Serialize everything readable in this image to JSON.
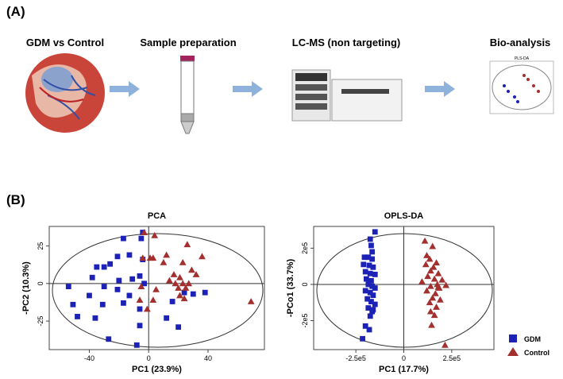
{
  "panel_a": {
    "label": "(A)",
    "steps": [
      "GDM vs Control",
      "Sample preparation",
      "LC-MS (non targeting)",
      "Bio-analysis"
    ],
    "mini_chart_title": "PLS-DA"
  },
  "panel_b": {
    "label": "(B)"
  },
  "chart_data": [
    {
      "type": "scatter",
      "title": "PCA",
      "x_label": "PC1 (23.9%)",
      "y_label": "-PC2 (10.3%)",
      "xlim": [
        -67,
        78
      ],
      "ylim": [
        -44,
        38
      ],
      "xticks": [
        -40,
        0,
        40
      ],
      "yticks": [
        -25,
        0,
        25
      ],
      "series": [
        {
          "name": "GDM",
          "color": "#1c22b5",
          "marker": "square",
          "x": [
            -17,
            -5,
            -13,
            -21,
            -35,
            -30,
            -26,
            -4,
            -38,
            -54,
            -51,
            -20,
            -11,
            -6,
            -30,
            -40,
            -21,
            -3,
            -13,
            -31,
            -17,
            -6,
            -48,
            -36,
            -6,
            16,
            24,
            12,
            20,
            30,
            38,
            -27,
            -8,
            -4
          ],
          "values": [
            30,
            30,
            19,
            18,
            11,
            11,
            13,
            16,
            4,
            -2,
            -14,
            2,
            3,
            5,
            -2,
            -8,
            -4,
            0,
            -8,
            -14,
            -13,
            -17,
            -22,
            -23,
            -28,
            -12,
            -6,
            -23,
            -29,
            -7,
            -6,
            -37,
            -41,
            34
          ]
        },
        {
          "name": "Control",
          "color": "#a3302f",
          "marker": "triangle",
          "x": [
            -3,
            4,
            26,
            -4,
            3,
            12,
            23,
            36,
            17,
            21,
            29,
            32,
            14,
            18,
            23,
            27,
            20,
            25,
            21,
            24,
            5,
            3,
            -6,
            -1,
            -5,
            1,
            69,
            10
          ],
          "values": [
            34,
            32,
            26,
            17,
            17,
            19,
            14,
            18,
            6,
            4,
            9,
            6,
            2,
            0,
            0,
            0,
            -3,
            -3,
            -8,
            -10,
            -4,
            -11,
            -11,
            -17,
            -2,
            17,
            -12,
            14
          ]
        }
      ]
    },
    {
      "type": "scatter",
      "title": "OPLS-DA",
      "x_label": "PC1 (17.7%)",
      "y_label": "-PCo1 (33.7%)",
      "xlim": [
        -470000,
        470000
      ],
      "ylim": [
        -360000,
        320000
      ],
      "xticks": [
        {
          "value": -250000,
          "label": "-2.5e5"
        },
        0,
        {
          "value": 250000,
          "label": "2.5e5"
        }
      ],
      "yticks": [
        {
          "value": -200000,
          "label": "-2e5"
        },
        0,
        {
          "value": 200000,
          "label": "2e5"
        }
      ],
      "series": [
        {
          "name": "GDM",
          "color": "#1c22b5",
          "marker": "square",
          "x": [
            -150000,
            -175000,
            -170000,
            -165000,
            -205000,
            -185000,
            -165000,
            -210000,
            -180000,
            -160000,
            -200000,
            -175000,
            -150000,
            -195000,
            -170000,
            -185000,
            -165000,
            -150000,
            -200000,
            -175000,
            -160000,
            -190000,
            -170000,
            -150000,
            -185000,
            -165000,
            -175000,
            -200000,
            -180000,
            -215000,
            -160000
          ],
          "values": [
            290000,
            250000,
            215000,
            180000,
            150000,
            150000,
            140000,
            110000,
            105000,
            95000,
            70000,
            60000,
            55000,
            30000,
            20000,
            0,
            -10000,
            -20000,
            -35000,
            -45000,
            -60000,
            -80000,
            -95000,
            -110000,
            -130000,
            -150000,
            -175000,
            -230000,
            -250000,
            -300000,
            -140000
          ]
        },
        {
          "name": "Control",
          "color": "#a3302f",
          "marker": "triangle",
          "x": [
            110000,
            150000,
            120000,
            135000,
            170000,
            115000,
            155000,
            140000,
            180000,
            125000,
            160000,
            200000,
            95000,
            175000,
            220000,
            140000,
            185000,
            120000,
            165000,
            150000,
            190000,
            135000,
            170000,
            140000,
            160000,
            145000,
            215000,
            180000
          ],
          "values": [
            240000,
            210000,
            160000,
            140000,
            120000,
            110000,
            95000,
            75000,
            60000,
            45000,
            30000,
            25000,
            15000,
            0,
            -5000,
            -10000,
            -20000,
            -35000,
            -50000,
            -75000,
            -85000,
            -100000,
            -125000,
            -150000,
            -170000,
            -225000,
            -335000,
            -15000
          ]
        }
      ]
    }
  ]
}
